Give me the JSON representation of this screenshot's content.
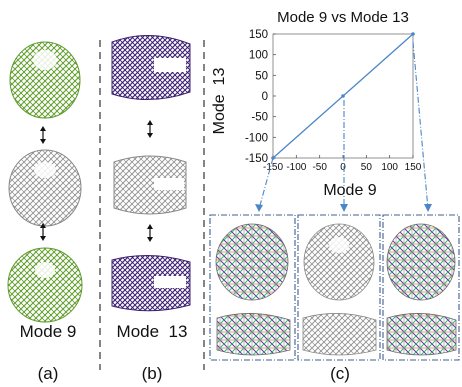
{
  "panel_a": {
    "label": "Mode 9",
    "caption": "(a)",
    "color": "#6aa832"
  },
  "panel_b": {
    "label": "Mode  13",
    "caption": "(b)",
    "color": "#4b2a86"
  },
  "panel_c": {
    "caption": "(c)"
  },
  "chart_data": {
    "type": "line",
    "title": "Mode 9 vs Mode 13",
    "xlabel": "Mode 9",
    "ylabel": "Mode  13",
    "xlim": [
      -150,
      150
    ],
    "ylim": [
      -150,
      150
    ],
    "xticks": [
      -150,
      -100,
      -50,
      0,
      50,
      100,
      150
    ],
    "yticks": [
      -150,
      -100,
      -50,
      0,
      50,
      100,
      150
    ],
    "tick_labels_x": [
      "-150",
      "-100",
      "-50",
      "0",
      "50",
      "100",
      "150"
    ],
    "tick_labels_y": [
      "-150",
      "-100",
      "-50",
      "0",
      "50",
      "100",
      "150"
    ],
    "series": [
      {
        "x": [
          -150,
          150
        ],
        "y": [
          -150,
          150
        ],
        "color": "#4a86c8"
      }
    ],
    "annotated_points": [
      {
        "x": -150,
        "y": -150
      },
      {
        "x": 0,
        "y": 0
      },
      {
        "x": 150,
        "y": 150
      }
    ]
  },
  "colors": {
    "gray": "#8c8c8c",
    "arrow": "#4a86c8",
    "divider": "#333333"
  }
}
